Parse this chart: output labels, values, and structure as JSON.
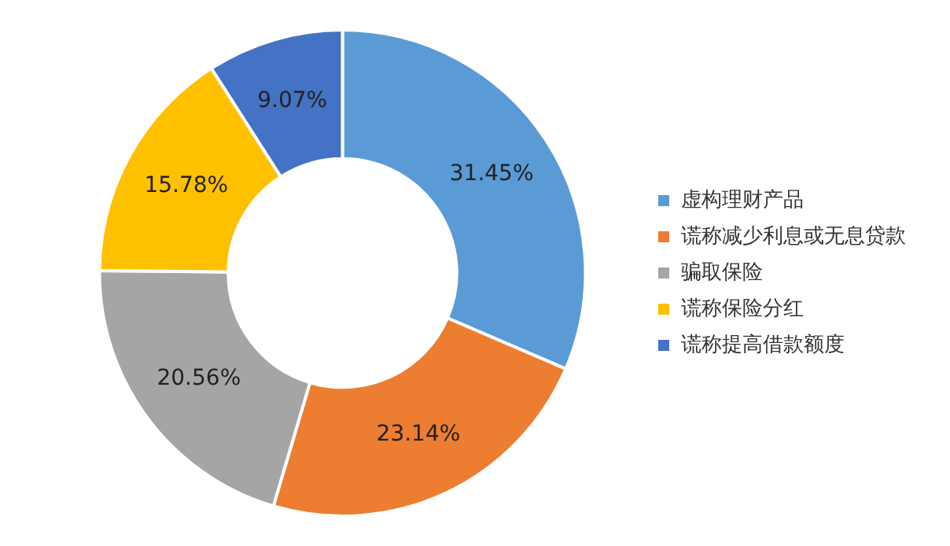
{
  "chart_data": {
    "type": "donut",
    "categories": [
      "虚构理财产品",
      "谎称减少利息或无息贷款",
      "骗取保险",
      "谎称保险分红",
      "谎称提高借款额度"
    ],
    "values": [
      31.45,
      23.14,
      20.56,
      15.78,
      9.07
    ],
    "value_labels": [
      "31.45%",
      "23.14%",
      "20.56%",
      "15.78%",
      "9.07%"
    ],
    "colors": [
      "#5b9bd5",
      "#ed7d31",
      "#a5a5a5",
      "#ffc000",
      "#4472c4"
    ],
    "legend": "right"
  }
}
